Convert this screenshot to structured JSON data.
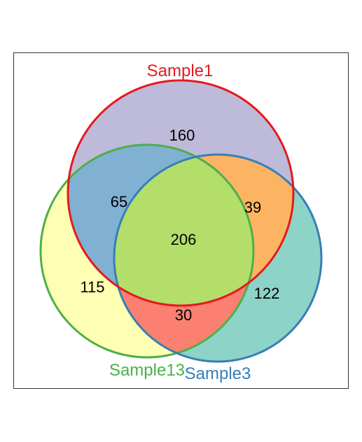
{
  "chart_data": {
    "type": "venn",
    "sets": [
      {
        "key": "s1",
        "name": "Sample1",
        "outline_color": "#e41a1c"
      },
      {
        "key": "s13",
        "name": "Sample13",
        "outline_color": "#4daf4a"
      },
      {
        "key": "s3",
        "name": "Sample3",
        "outline_color": "#377eb8"
      }
    ],
    "regions": [
      {
        "key": "s1_only",
        "sets": [
          "Sample1"
        ],
        "value": "160",
        "fill": "#bebada"
      },
      {
        "key": "s13_only",
        "sets": [
          "Sample13"
        ],
        "value": "115",
        "fill": "#ffffb3"
      },
      {
        "key": "s3_only",
        "sets": [
          "Sample3"
        ],
        "value": "122",
        "fill": "#8dd3c7"
      },
      {
        "key": "s1_s13",
        "sets": [
          "Sample1",
          "Sample13"
        ],
        "value": "65",
        "fill": "#80b1d3"
      },
      {
        "key": "s1_s3",
        "sets": [
          "Sample1",
          "Sample3"
        ],
        "value": "39",
        "fill": "#fdb462"
      },
      {
        "key": "s13_s3",
        "sets": [
          "Sample13",
          "Sample3"
        ],
        "value": "30",
        "fill": "#fb8072"
      },
      {
        "key": "s1_s13_s3",
        "sets": [
          "Sample1",
          "Sample13",
          "Sample3"
        ],
        "value": "206",
        "fill": "#b3de69"
      }
    ]
  }
}
